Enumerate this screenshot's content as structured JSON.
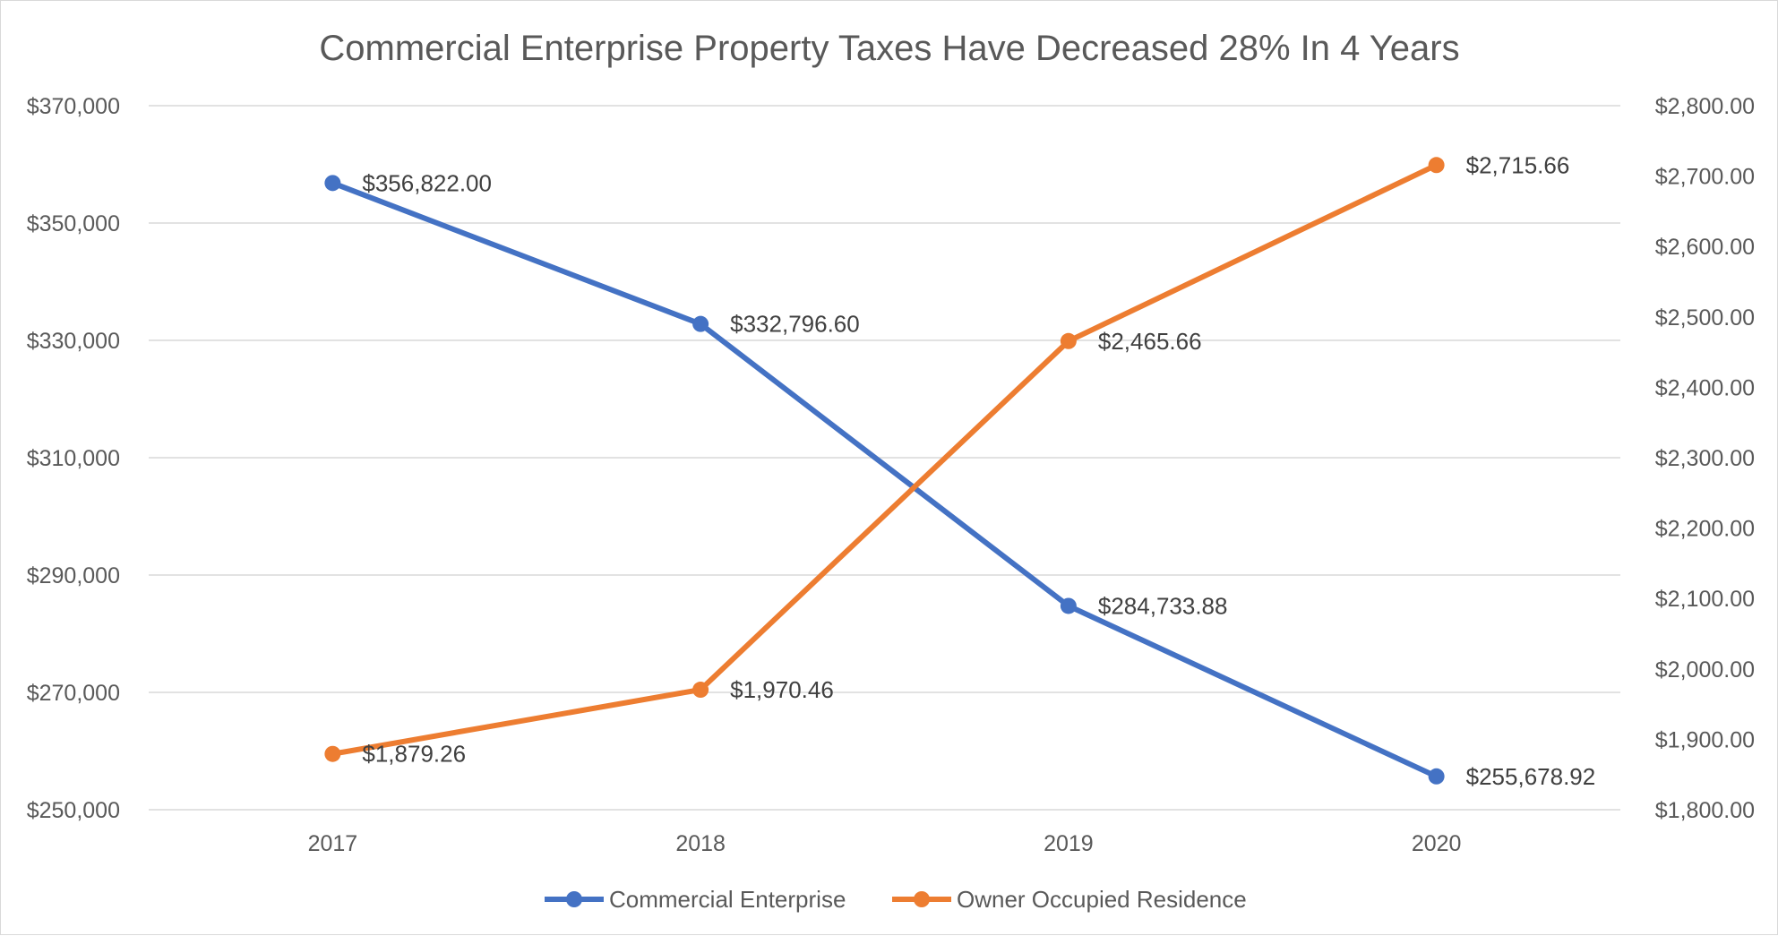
{
  "chart_data": {
    "type": "line",
    "title": "Commercial Enterprise Property Taxes Have Decreased 28% In 4 Years",
    "categories": [
      "2017",
      "2018",
      "2019",
      "2020"
    ],
    "xlabel": "",
    "ylabel": "",
    "grid": true,
    "legend_position": "bottom",
    "y_left": {
      "min": 250000,
      "max": 370000,
      "ticks": [
        250000,
        270000,
        290000,
        310000,
        330000,
        350000,
        370000
      ],
      "tick_labels": [
        "$250,000",
        "$270,000",
        "$290,000",
        "$310,000",
        "$330,000",
        "$350,000",
        "$370,000"
      ]
    },
    "y_right": {
      "min": 1800,
      "max": 2800,
      "ticks": [
        1800,
        1900,
        2000,
        2100,
        2200,
        2300,
        2400,
        2500,
        2600,
        2700,
        2800
      ],
      "tick_labels": [
        "$1,800.00",
        "$1,900.00",
        "$2,000.00",
        "$2,100.00",
        "$2,200.00",
        "$2,300.00",
        "$2,400.00",
        "$2,500.00",
        "$2,600.00",
        "$2,700.00",
        "$2,800.00"
      ]
    },
    "series": [
      {
        "name": "Commercial Enterprise",
        "axis": "left",
        "color": "#4472C4",
        "values": [
          356822.0,
          332796.6,
          284733.88,
          255678.92
        ],
        "labels": [
          "$356,822.00",
          "$332,796.60",
          "$284,733.88",
          "$255,678.92"
        ]
      },
      {
        "name": "Owner Occupied Residence",
        "axis": "right",
        "color": "#ED7D31",
        "values": [
          1879.26,
          1970.46,
          2465.66,
          2715.66
        ],
        "labels": [
          "$1,879.26",
          "$1,970.46",
          "$2,465.66",
          "$2,715.66"
        ]
      }
    ]
  }
}
